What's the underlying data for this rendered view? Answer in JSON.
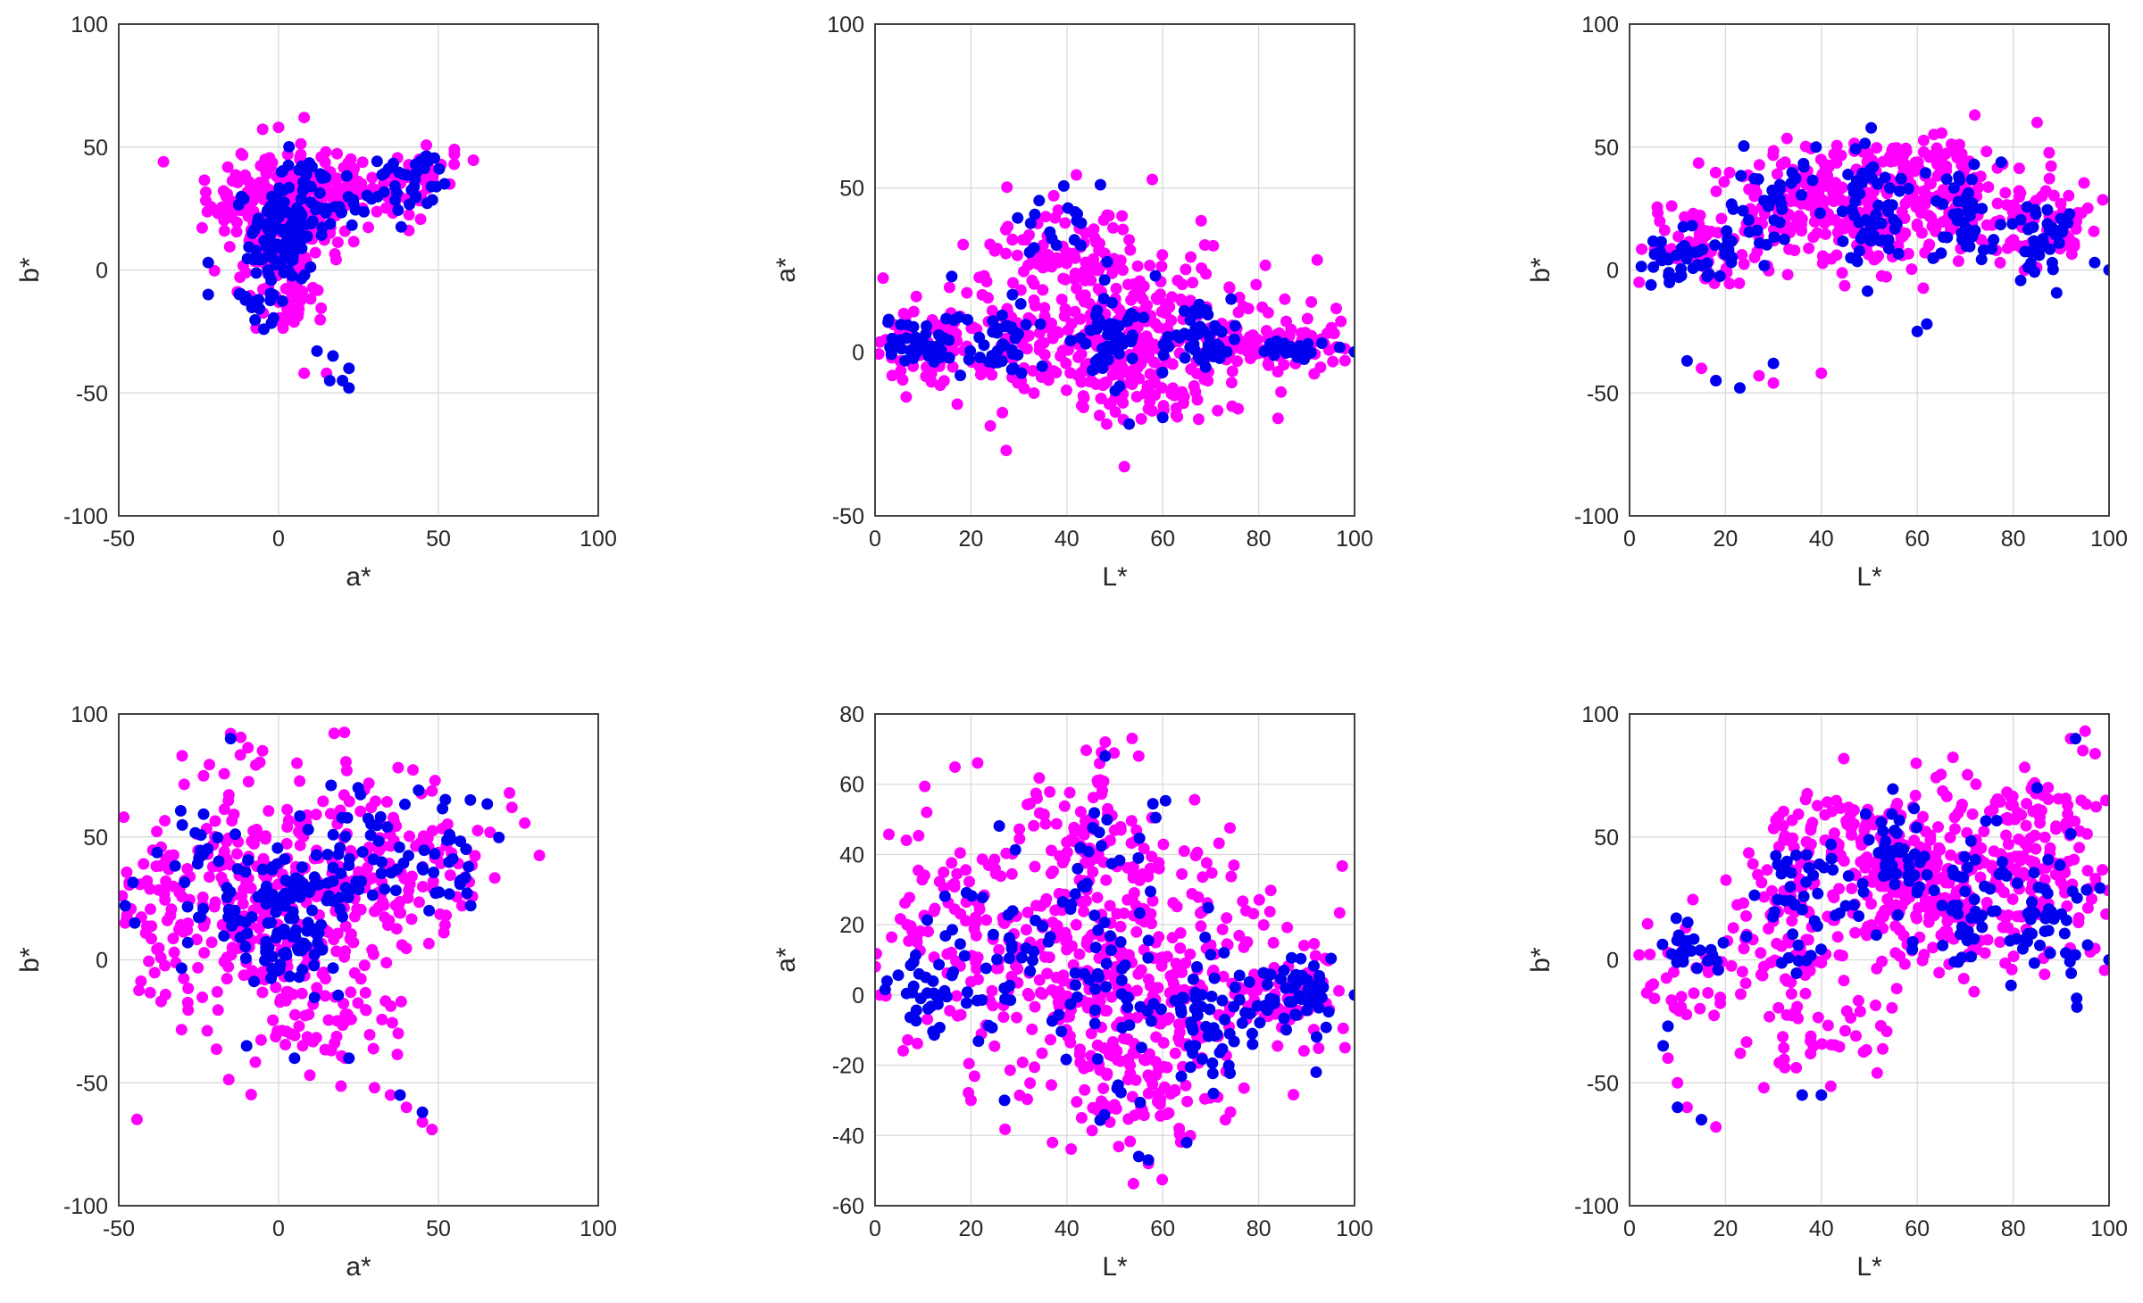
{
  "colors": {
    "series_a": "#ff00ff",
    "series_b": "#0000ee",
    "axes": "#333333",
    "grid": "#dcdcdc"
  },
  "chart_data": [
    {
      "type": "scatter",
      "xlabel": "a*",
      "ylabel": "b*",
      "xlim": [
        -50,
        100
      ],
      "ylim": [
        -100,
        100
      ],
      "xticks": [
        -50,
        0,
        50,
        100
      ],
      "yticks": [
        -100,
        -50,
        0,
        50,
        100
      ],
      "grid": true,
      "series": [
        {
          "color": "#ff00ff",
          "clusters": [
            {
              "cx": 0,
              "cy": 15,
              "sx": 9,
              "sy": 14,
              "n": 140
            },
            {
              "cx": 8,
              "cy": 32,
              "sx": 10,
              "sy": 10,
              "n": 120
            },
            {
              "cx": -12,
              "cy": 25,
              "sx": 7,
              "sy": 7,
              "n": 40
            },
            {
              "cx": 30,
              "cy": 32,
              "sx": 9,
              "sy": 6,
              "n": 45
            },
            {
              "cx": 45,
              "cy": 42,
              "sx": 5,
              "sy": 4,
              "n": 20
            },
            {
              "cx": 5,
              "cy": -12,
              "sx": 5,
              "sy": 7,
              "n": 25
            }
          ],
          "points": [
            [
              -36,
              44
            ],
            [
              55,
              49
            ],
            [
              8,
              62
            ],
            [
              0,
              58
            ],
            [
              15,
              -42
            ],
            [
              8,
              -42
            ]
          ]
        },
        {
          "color": "#0000ee",
          "clusters": [
            {
              "cx": 0,
              "cy": 12,
              "sx": 5,
              "sy": 12,
              "n": 90
            },
            {
              "cx": 10,
              "cy": 30,
              "sx": 6,
              "sy": 7,
              "n": 45
            },
            {
              "cx": 35,
              "cy": 30,
              "sx": 8,
              "sy": 6,
              "n": 30
            },
            {
              "cx": 45,
              "cy": 43,
              "sx": 4,
              "sy": 3,
              "n": 14
            },
            {
              "cx": -5,
              "cy": -12,
              "sx": 4,
              "sy": 6,
              "n": 14
            }
          ],
          "points": [
            [
              -22,
              3
            ],
            [
              -22,
              -10
            ],
            [
              12,
              -33
            ],
            [
              17,
              -35
            ],
            [
              22,
              -40
            ],
            [
              20,
              -45
            ],
            [
              22,
              -48
            ],
            [
              16,
              -45
            ]
          ]
        }
      ]
    },
    {
      "type": "scatter",
      "xlabel": "L*",
      "ylabel": "a*",
      "xlim": [
        0,
        100
      ],
      "ylim": [
        -50,
        100
      ],
      "xticks": [
        0,
        20,
        40,
        60,
        80,
        100
      ],
      "yticks": [
        -50,
        0,
        50,
        100
      ],
      "grid": true,
      "series": [
        {
          "color": "#ff00ff",
          "clusters": [
            {
              "cx": 50,
              "cy": 5,
              "sx": 18,
              "sy": 11,
              "n": 320
            },
            {
              "cx": 40,
              "cy": 27,
              "sx": 10,
              "sy": 10,
              "n": 110
            },
            {
              "cx": 12,
              "cy": 3,
              "sx": 7,
              "sy": 6,
              "n": 60
            },
            {
              "cx": 85,
              "cy": 1,
              "sx": 8,
              "sy": 3,
              "n": 60
            },
            {
              "cx": 55,
              "cy": -12,
              "sx": 10,
              "sy": 5,
              "n": 60
            }
          ],
          "points": [
            [
              52,
              -35
            ],
            [
              42,
              54
            ],
            [
              68,
              40
            ],
            [
              1,
              3
            ],
            [
              98,
              1
            ]
          ]
        },
        {
          "color": "#0000ee",
          "clusters": [
            {
              "cx": 10,
              "cy": 2,
              "sx": 5,
              "sy": 4,
              "n": 45
            },
            {
              "cx": 27,
              "cy": 3,
              "sx": 4,
              "sy": 5,
              "n": 40
            },
            {
              "cx": 50,
              "cy": 5,
              "sx": 4,
              "sy": 8,
              "n": 55
            },
            {
              "cx": 68,
              "cy": 5,
              "sx": 4,
              "sy": 5,
              "n": 45
            },
            {
              "cx": 87,
              "cy": 1,
              "sx": 3,
              "sy": 2,
              "n": 30
            },
            {
              "cx": 38,
              "cy": 40,
              "sx": 6,
              "sy": 6,
              "n": 18
            }
          ],
          "points": [
            [
              47,
              51
            ],
            [
              100,
              0
            ],
            [
              53,
              -22
            ],
            [
              60,
              -20
            ],
            [
              16,
              23
            ]
          ]
        }
      ]
    },
    {
      "type": "scatter",
      "xlabel": "L*",
      "ylabel": "b*",
      "xlim": [
        0,
        100
      ],
      "ylim": [
        -100,
        100
      ],
      "xticks": [
        0,
        20,
        40,
        60,
        80,
        100
      ],
      "yticks": [
        -100,
        -50,
        0,
        50,
        100
      ],
      "grid": true,
      "series": [
        {
          "color": "#ff00ff",
          "clusters": [
            {
              "cx": 50,
              "cy": 25,
              "sx": 18,
              "sy": 12,
              "n": 360
            },
            {
              "cx": 15,
              "cy": 8,
              "sx": 8,
              "sy": 8,
              "n": 60
            },
            {
              "cx": 85,
              "cy": 15,
              "sx": 7,
              "sy": 8,
              "n": 60
            },
            {
              "cx": 60,
              "cy": 45,
              "sx": 10,
              "sy": 5,
              "n": 50
            }
          ],
          "points": [
            [
              72,
              63
            ],
            [
              85,
              60
            ],
            [
              30,
              -46
            ],
            [
              27,
              -43
            ],
            [
              40,
              -42
            ],
            [
              18,
              -45
            ],
            [
              15,
              -40
            ],
            [
              2,
              -5
            ]
          ]
        },
        {
          "color": "#0000ee",
          "clusters": [
            {
              "cx": 12,
              "cy": 5,
              "sx": 5,
              "sy": 6,
              "n": 40
            },
            {
              "cx": 30,
              "cy": 25,
              "sx": 5,
              "sy": 10,
              "n": 40
            },
            {
              "cx": 50,
              "cy": 25,
              "sx": 4,
              "sy": 12,
              "n": 55
            },
            {
              "cx": 70,
              "cy": 20,
              "sx": 4,
              "sy": 12,
              "n": 40
            },
            {
              "cx": 86,
              "cy": 12,
              "sx": 3,
              "sy": 8,
              "n": 35
            }
          ],
          "points": [
            [
              100,
              0
            ],
            [
              97,
              3
            ],
            [
              23,
              -48
            ],
            [
              30,
              -38
            ],
            [
              12,
              -37
            ],
            [
              18,
              -45
            ],
            [
              62,
              -22
            ],
            [
              60,
              -25
            ]
          ]
        }
      ]
    },
    {
      "type": "scatter",
      "xlabel": "a*",
      "ylabel": "b*",
      "xlim": [
        -50,
        100
      ],
      "ylim": [
        -100,
        100
      ],
      "xticks": [
        -50,
        0,
        50,
        100
      ],
      "yticks": [
        -100,
        -50,
        0,
        50,
        100
      ],
      "grid": true,
      "series": [
        {
          "color": "#ff00ff",
          "clusters": [
            {
              "cx": 0,
              "cy": 25,
              "sx": 22,
              "sy": 28,
              "n": 330
            },
            {
              "cx": 40,
              "cy": 40,
              "sx": 15,
              "sy": 15,
              "n": 100
            },
            {
              "cx": -35,
              "cy": 25,
              "sx": 8,
              "sy": 15,
              "n": 40
            },
            {
              "cx": 15,
              "cy": -25,
              "sx": 12,
              "sy": 10,
              "n": 40
            }
          ],
          "points": [
            [
              -15,
              92
            ],
            [
              -5,
              85
            ],
            [
              73,
              62
            ],
            [
              48,
              -69
            ],
            [
              45,
              -66
            ],
            [
              40,
              -60
            ],
            [
              35,
              -55
            ],
            [
              30,
              -52
            ],
            [
              -48,
              15
            ]
          ]
        },
        {
          "color": "#0000ee",
          "clusters": [
            {
              "cx": 0,
              "cy": 10,
              "sx": 8,
              "sy": 12,
              "n": 80
            },
            {
              "cx": 5,
              "cy": 30,
              "sx": 10,
              "sy": 8,
              "n": 45
            },
            {
              "cx": 30,
              "cy": 45,
              "sx": 12,
              "sy": 15,
              "n": 45
            },
            {
              "cx": -25,
              "cy": 35,
              "sx": 8,
              "sy": 15,
              "n": 25
            },
            {
              "cx": 55,
              "cy": 45,
              "sx": 7,
              "sy": 10,
              "n": 25
            }
          ],
          "points": [
            [
              -48,
              22
            ],
            [
              -45,
              15
            ],
            [
              45,
              -62
            ],
            [
              38,
              -55
            ],
            [
              -10,
              -35
            ],
            [
              5,
              -40
            ],
            [
              22,
              -40
            ],
            [
              -15,
              90
            ],
            [
              60,
              65
            ]
          ]
        }
      ]
    },
    {
      "type": "scatter",
      "xlabel": "L*",
      "ylabel": "a*",
      "xlim": [
        0,
        100
      ],
      "ylim": [
        -60,
        80
      ],
      "xticks": [
        0,
        20,
        40,
        60,
        80,
        100
      ],
      "yticks": [
        -60,
        -40,
        -20,
        0,
        20,
        40,
        60,
        80
      ],
      "grid": true,
      "series": [
        {
          "color": "#ff00ff",
          "clusters": [
            {
              "cx": 50,
              "cy": 5,
              "sx": 20,
              "sy": 20,
              "n": 420
            },
            {
              "cx": 45,
              "cy": 45,
              "sx": 8,
              "sy": 12,
              "n": 80
            },
            {
              "cx": 15,
              "cy": 25,
              "sx": 7,
              "sy": 12,
              "n": 60
            },
            {
              "cx": 85,
              "cy": 0,
              "sx": 7,
              "sy": 7,
              "n": 60
            },
            {
              "cx": 55,
              "cy": -30,
              "sx": 8,
              "sy": 8,
              "n": 50
            }
          ],
          "points": [
            [
              48,
              72
            ],
            [
              55,
              68
            ],
            [
              57,
              -48
            ],
            [
              37,
              -42
            ],
            [
              20,
              -30
            ],
            [
              98,
              -15
            ],
            [
              1,
              0
            ]
          ]
        },
        {
          "color": "#0000ee",
          "clusters": [
            {
              "cx": 10,
              "cy": 2,
              "sx": 5,
              "sy": 8,
              "n": 35
            },
            {
              "cx": 28,
              "cy": 10,
              "sx": 6,
              "sy": 12,
              "n": 40
            },
            {
              "cx": 50,
              "cy": 0,
              "sx": 5,
              "sy": 15,
              "n": 50
            },
            {
              "cx": 70,
              "cy": -5,
              "sx": 5,
              "sy": 10,
              "n": 55
            },
            {
              "cx": 88,
              "cy": 0,
              "sx": 4,
              "sy": 6,
              "n": 55
            },
            {
              "cx": 50,
              "cy": 45,
              "sx": 6,
              "sy": 12,
              "n": 20
            }
          ],
          "points": [
            [
              55,
              -46
            ],
            [
              57,
              -47
            ],
            [
              65,
              -42
            ],
            [
              48,
              68
            ],
            [
              100,
              0
            ],
            [
              92,
              -22
            ],
            [
              27,
              -30
            ]
          ]
        }
      ]
    },
    {
      "type": "scatter",
      "xlabel": "L*",
      "ylabel": "b*",
      "xlim": [
        0,
        100
      ],
      "ylim": [
        -100,
        100
      ],
      "xticks": [
        0,
        20,
        40,
        60,
        80,
        100
      ],
      "yticks": [
        -100,
        -50,
        0,
        50,
        100
      ],
      "grid": true,
      "series": [
        {
          "color": "#ff00ff",
          "clusters": [
            {
              "cx": 65,
              "cy": 30,
              "sx": 18,
              "sy": 18,
              "n": 380
            },
            {
              "cx": 45,
              "cy": 50,
              "sx": 10,
              "sy": 8,
              "n": 60
            },
            {
              "cx": 85,
              "cy": 60,
              "sx": 8,
              "sy": 10,
              "n": 60
            },
            {
              "cx": 30,
              "cy": 10,
              "sx": 8,
              "sy": 12,
              "n": 60
            },
            {
              "cx": 40,
              "cy": -30,
              "sx": 8,
              "sy": 10,
              "n": 40
            },
            {
              "cx": 12,
              "cy": -10,
              "sx": 6,
              "sy": 8,
              "n": 30
            }
          ],
          "points": [
            [
              95,
              93
            ],
            [
              92,
              90
            ],
            [
              18,
              -68
            ],
            [
              15,
              -65
            ],
            [
              12,
              -60
            ],
            [
              10,
              -50
            ],
            [
              8,
              -40
            ],
            [
              28,
              -52
            ],
            [
              2,
              2
            ]
          ]
        },
        {
          "color": "#0000ee",
          "clusters": [
            {
              "cx": 12,
              "cy": 5,
              "sx": 4,
              "sy": 6,
              "n": 25
            },
            {
              "cx": 35,
              "cy": 25,
              "sx": 6,
              "sy": 12,
              "n": 40
            },
            {
              "cx": 55,
              "cy": 35,
              "sx": 5,
              "sy": 15,
              "n": 50
            },
            {
              "cx": 72,
              "cy": 25,
              "sx": 5,
              "sy": 15,
              "n": 45
            },
            {
              "cx": 88,
              "cy": 20,
              "sx": 4,
              "sy": 15,
              "n": 45
            }
          ],
          "points": [
            [
              10,
              -60
            ],
            [
              15,
              -65
            ],
            [
              7,
              -35
            ],
            [
              8,
              -27
            ],
            [
              40,
              -55
            ],
            [
              36,
              -55
            ],
            [
              93,
              90
            ],
            [
              100,
              0
            ],
            [
              85,
              70
            ]
          ]
        }
      ]
    }
  ]
}
